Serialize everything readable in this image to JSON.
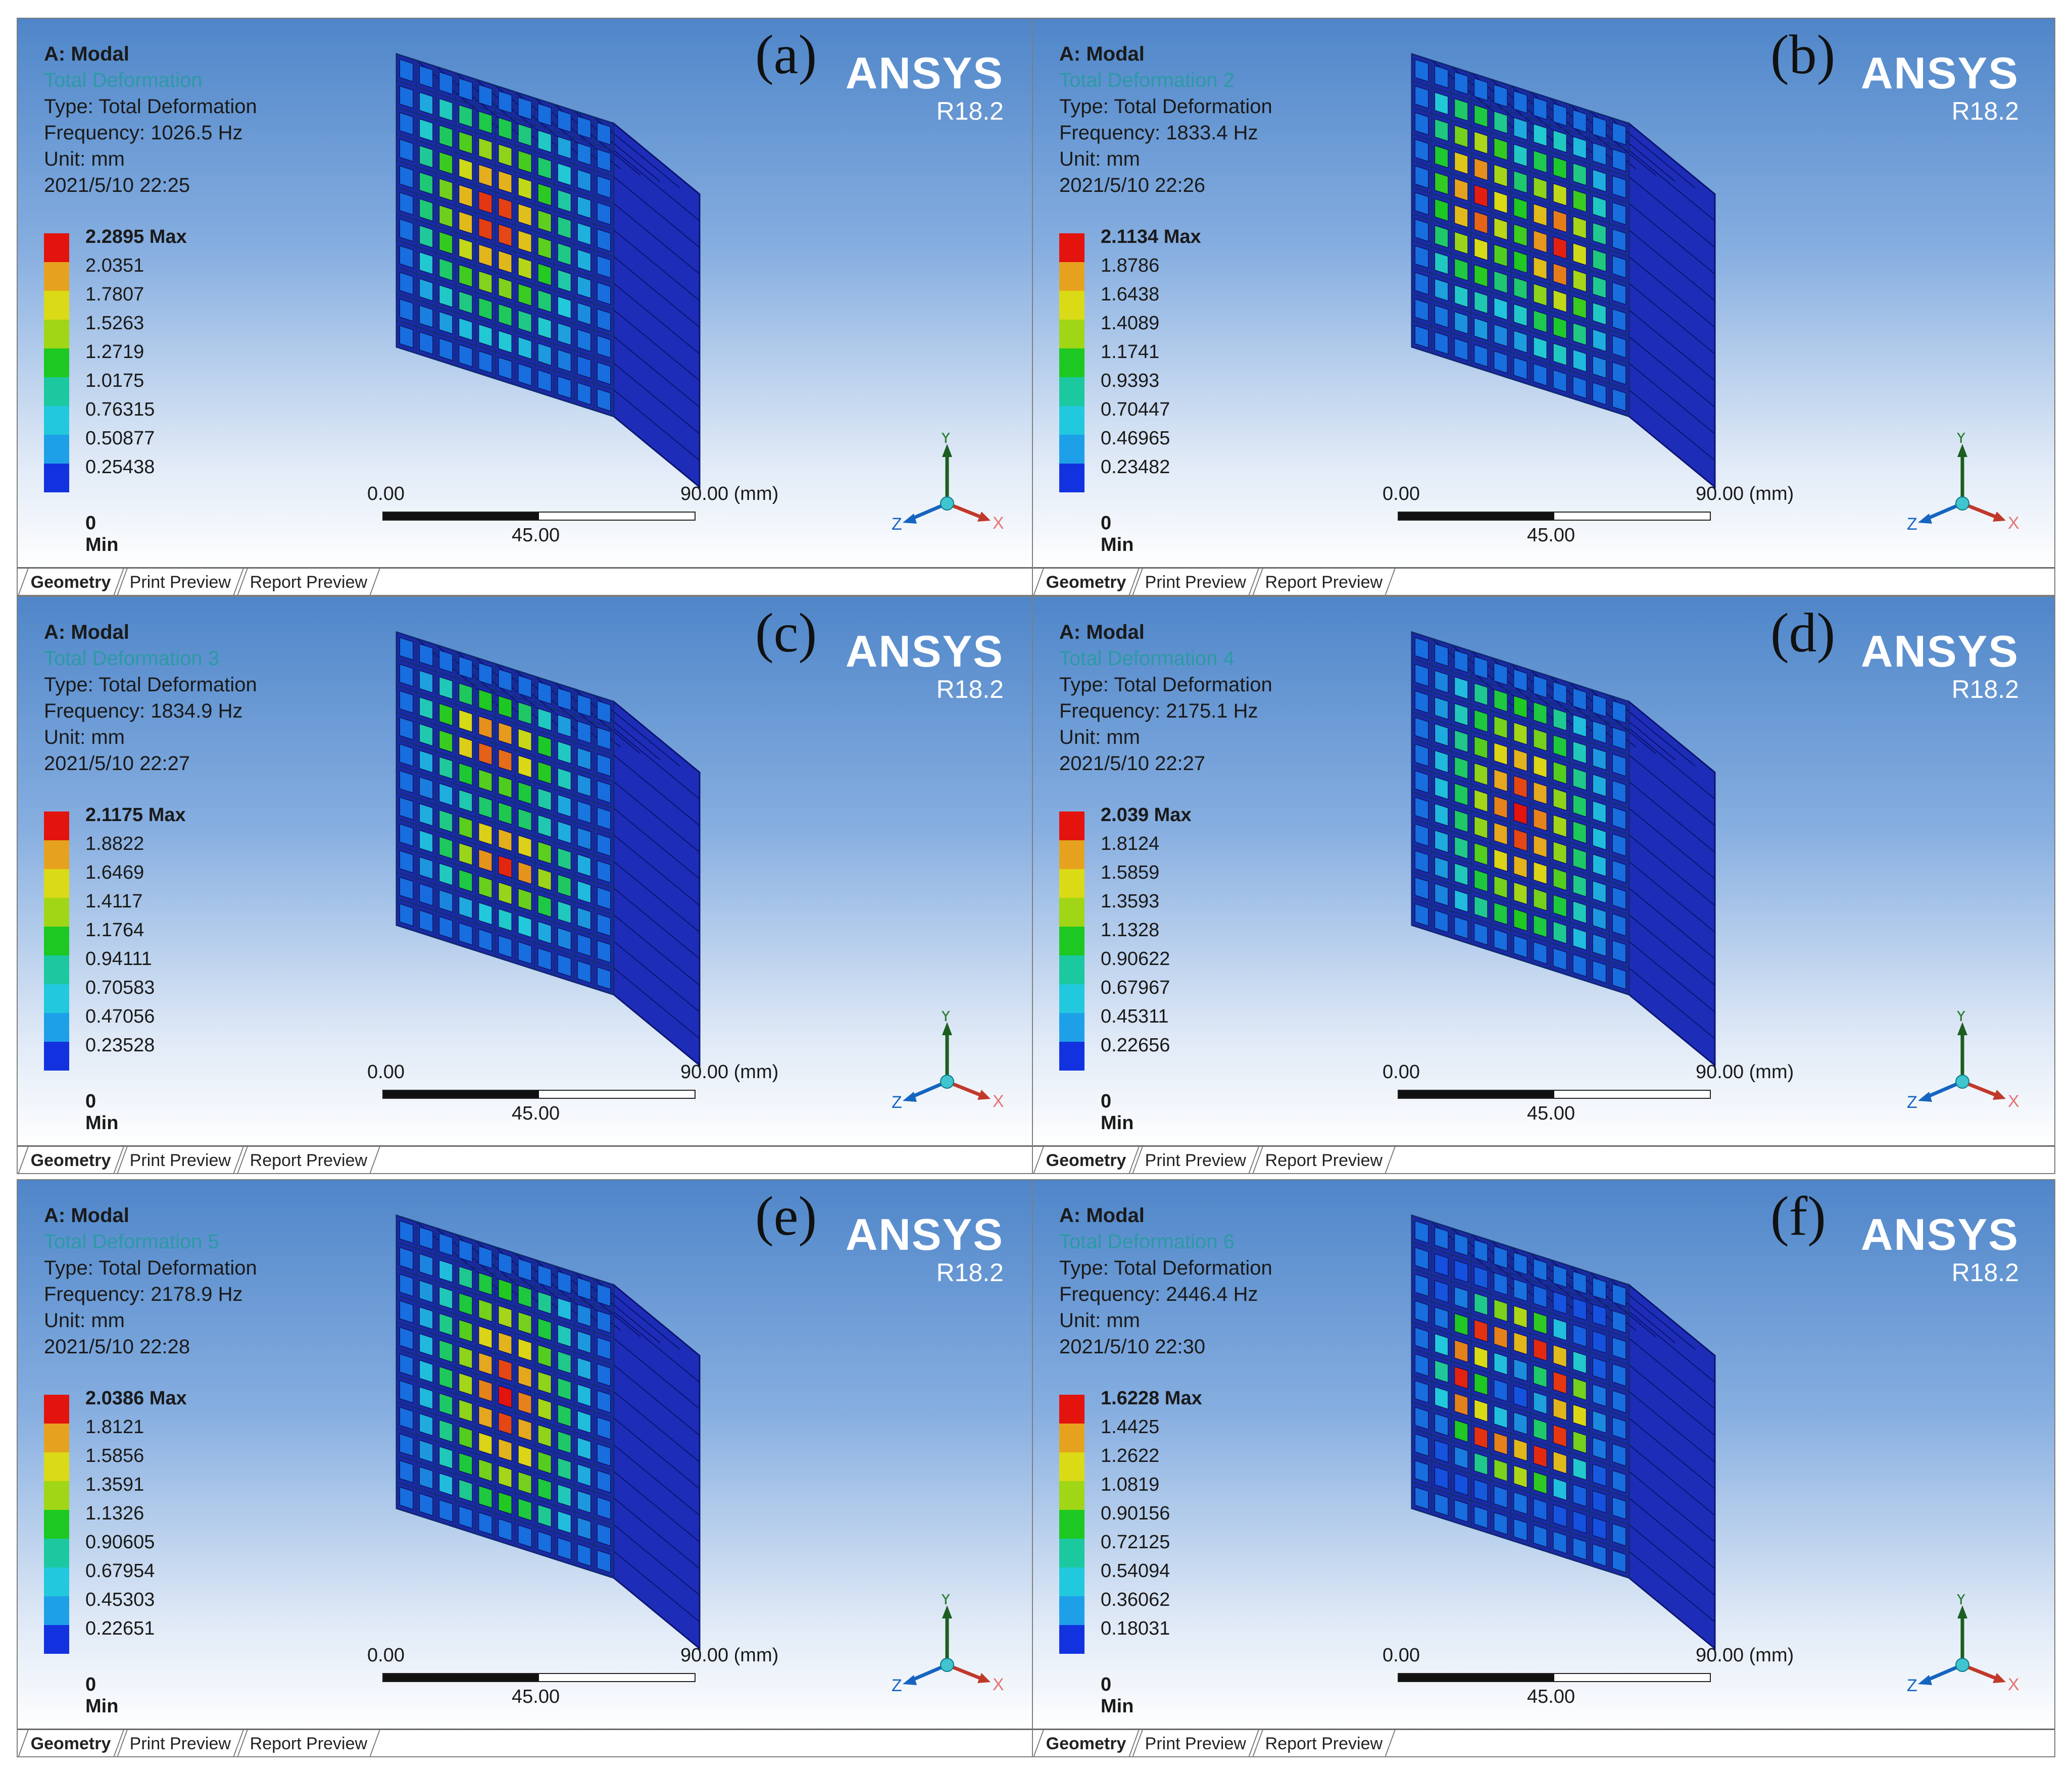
{
  "panels": [
    {
      "label": "(a)",
      "analysis": "A: Modal",
      "result_name": "Total Deformation",
      "type_line": "Type: Total Deformation",
      "frequency_line": "Frequency: 1026.5 Hz",
      "unit_line": "Unit: mm",
      "timestamp": "2021/5/10 22:25",
      "legend": [
        "2.2895 Max",
        "2.0351",
        "1.7807",
        "1.5263",
        "1.2719",
        "1.0175",
        "0.76315",
        "0.50877",
        "0.25438",
        "0 Min"
      ],
      "mode_pattern": "single"
    },
    {
      "label": "(b)",
      "analysis": "A: Modal",
      "result_name": "Total Deformation 2",
      "type_line": "Type: Total Deformation",
      "frequency_line": "Frequency: 1833.4 Hz",
      "unit_line": "Unit: mm",
      "timestamp": "2021/5/10 22:26",
      "legend": [
        "2.1134 Max",
        "1.8786",
        "1.6438",
        "1.4089",
        "1.1741",
        "0.9393",
        "0.70447",
        "0.46965",
        "0.23482",
        "0 Min"
      ],
      "mode_pattern": "horizontal-pair"
    },
    {
      "label": "(c)",
      "analysis": "A: Modal",
      "result_name": "Total Deformation 3",
      "type_line": "Type: Total Deformation",
      "frequency_line": "Frequency: 1834.9 Hz",
      "unit_line": "Unit: mm",
      "timestamp": "2021/5/10 22:27",
      "legend": [
        "2.1175 Max",
        "1.8822",
        "1.6469",
        "1.4117",
        "1.1764",
        "0.94111",
        "0.70583",
        "0.47056",
        "0.23528",
        "0 Min"
      ],
      "mode_pattern": "vertical-pair"
    },
    {
      "label": "(d)",
      "analysis": "A: Modal",
      "result_name": "Total Deformation 4",
      "type_line": "Type: Total Deformation",
      "frequency_line": "Frequency: 2175.1 Hz",
      "unit_line": "Unit: mm",
      "timestamp": "2021/5/10 22:27",
      "legend": [
        "2.039 Max",
        "1.8124",
        "1.5859",
        "1.3593",
        "1.1328",
        "0.90622",
        "0.67967",
        "0.45311",
        "0.22656",
        "0 Min"
      ],
      "mode_pattern": "elongated"
    },
    {
      "label": "(e)",
      "analysis": "A: Modal",
      "result_name": "Total Deformation 5",
      "type_line": "Type: Total Deformation",
      "frequency_line": "Frequency: 2178.9 Hz",
      "unit_line": "Unit: mm",
      "timestamp": "2021/5/10 22:28",
      "legend": [
        "2.0386 Max",
        "1.8121",
        "1.5856",
        "1.3591",
        "1.1326",
        "0.90605",
        "0.67954",
        "0.45303",
        "0.22651",
        "0 Min"
      ],
      "mode_pattern": "elongated"
    },
    {
      "label": "(f)",
      "analysis": "A: Modal",
      "result_name": "Total Deformation 6",
      "type_line": "Type: Total Deformation",
      "frequency_line": "Frequency: 2446.4 Hz",
      "unit_line": "Unit: mm",
      "timestamp": "2021/5/10 22:30",
      "legend": [
        "1.6228 Max",
        "1.4425",
        "1.2622",
        "1.0819",
        "0.90156",
        "0.72125",
        "0.54094",
        "0.36062",
        "0.18031",
        "0 Min"
      ],
      "mode_pattern": "ring"
    }
  ],
  "brand": {
    "name": "ANSYS",
    "version": "R18.2"
  },
  "scale": {
    "start": "0.00",
    "mid": "45.00",
    "end": "90.00 (mm)"
  },
  "triad": {
    "x": "X",
    "y": "Y",
    "z": "Z"
  },
  "tabs": [
    "Geometry",
    "Print Preview",
    "Report Preview"
  ],
  "colors": {
    "legend_scale": [
      "#e3130e",
      "#e6a21e",
      "#dada16",
      "#a0d616",
      "#1dc822",
      "#1cc8a0",
      "#22c8dd",
      "#1ea0e8",
      "#1232e0"
    ]
  }
}
